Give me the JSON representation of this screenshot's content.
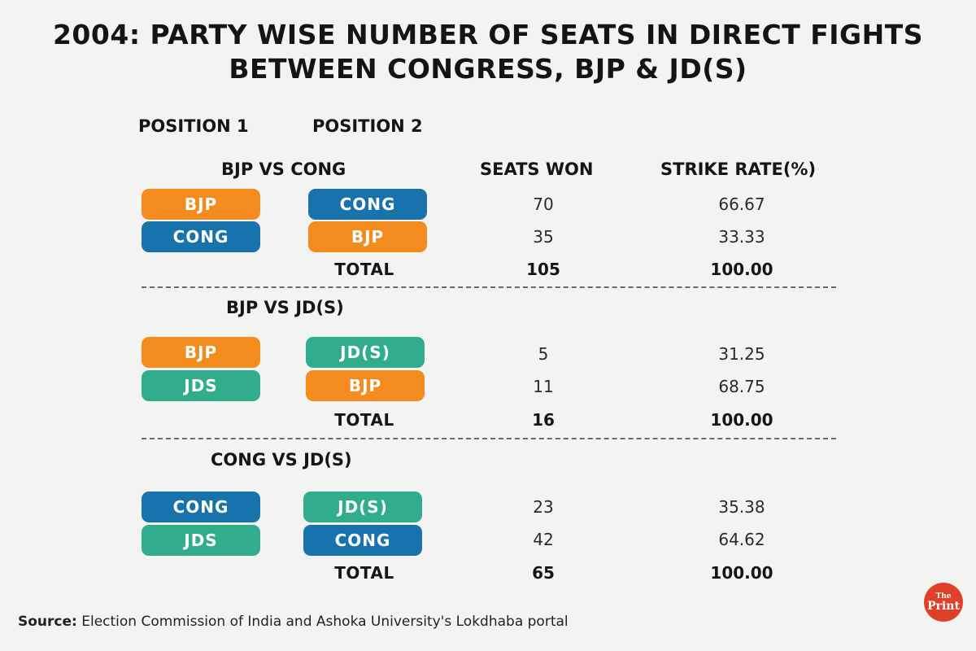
{
  "title": {
    "line1": "2004: PARTY WISE NUMBER OF SEATS IN DIRECT FIGHTS",
    "line2": "BETWEEN CONGRESS, BJP & JD(S)"
  },
  "headers": {
    "position1": "POSITION 1",
    "position2": "POSITION 2",
    "seats_won": "SEATS WON",
    "strike_rate": "STRIKE RATE(%)"
  },
  "colors": {
    "BJP": "#f38b1e",
    "CONG": "#1873ac",
    "JDS": "#31ad8e"
  },
  "sections": [
    {
      "title": "BJP VS CONG",
      "rows": [
        {
          "pos1": "BJP",
          "pos2": "CONG",
          "seats": "70",
          "rate": "66.67"
        },
        {
          "pos1": "CONG",
          "pos2": "BJP",
          "seats": "35",
          "rate": "33.33"
        }
      ],
      "total": {
        "label": "TOTAL",
        "seats": "105",
        "rate": "100.00"
      }
    },
    {
      "title": "BJP VS JD(S)",
      "rows": [
        {
          "pos1": "BJP",
          "pos2": "JD(S)",
          "seats": "5",
          "rate": "31.25"
        },
        {
          "pos1": "JDS",
          "pos2": "BJP",
          "seats": "11",
          "rate": "68.75"
        }
      ],
      "total": {
        "label": "TOTAL",
        "seats": "16",
        "rate": "100.00"
      }
    },
    {
      "title": "CONG VS JD(S)",
      "rows": [
        {
          "pos1": "CONG",
          "pos2": "JD(S)",
          "seats": "23",
          "rate": "35.38"
        },
        {
          "pos1": "JDS",
          "pos2": "CONG",
          "seats": "42",
          "rate": "64.62"
        }
      ],
      "total": {
        "label": "TOTAL",
        "seats": "65",
        "rate": "100.00"
      }
    }
  ],
  "source": {
    "label": "Source:",
    "text": "Election Commission of India and Ashoka University's Lokdhaba portal"
  },
  "logo": {
    "the": "The",
    "print": "Print"
  }
}
